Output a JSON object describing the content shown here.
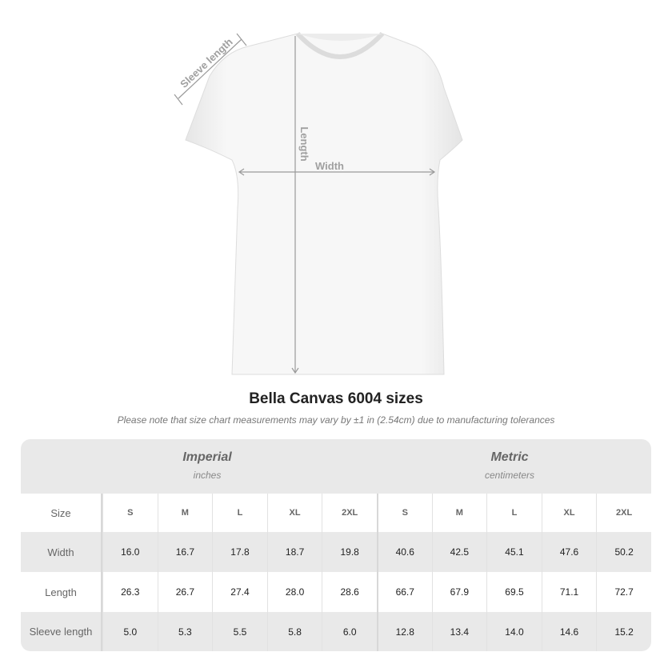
{
  "diagram": {
    "labels": {
      "sleeve": "Sleeve length",
      "length": "Length",
      "width": "Width"
    }
  },
  "title": "Bella Canvas 6004 sizes",
  "note": "Please note that size chart measurements may vary by ±1 in (2.54cm) due to manufacturing tolerances",
  "table": {
    "groups": [
      {
        "name": "Imperial",
        "unit": "inches"
      },
      {
        "name": "Metric",
        "unit": "centimeters"
      }
    ],
    "size_label": "Size",
    "sizes": [
      "S",
      "M",
      "L",
      "XL",
      "2XL",
      "S",
      "M",
      "L",
      "XL",
      "2XL"
    ],
    "rows": [
      {
        "label": "Width",
        "values": [
          "16.0",
          "16.7",
          "17.8",
          "18.7",
          "19.8",
          "40.6",
          "42.5",
          "45.1",
          "47.6",
          "50.2"
        ]
      },
      {
        "label": "Length",
        "values": [
          "26.3",
          "26.7",
          "27.4",
          "28.0",
          "28.6",
          "66.7",
          "67.9",
          "69.5",
          "71.1",
          "72.7"
        ]
      },
      {
        "label": "Sleeve length",
        "values": [
          "5.0",
          "5.3",
          "5.5",
          "5.8",
          "6.0",
          "12.8",
          "13.4",
          "14.0",
          "14.6",
          "15.2"
        ]
      }
    ]
  }
}
